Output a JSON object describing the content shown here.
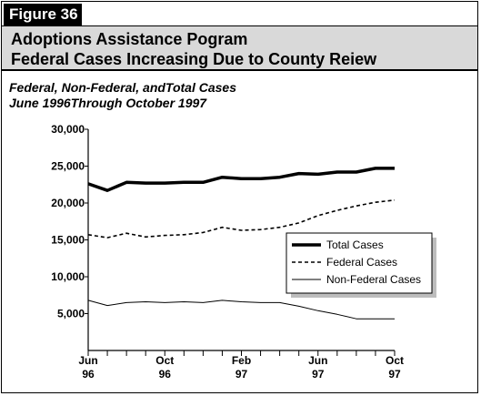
{
  "figure_label": "Figure 36",
  "title_lines": [
    "Adoptions Assistance Pogram",
    "Federal Cases Increasing Due to County Reiew"
  ],
  "subtitle_lines": [
    "Federal, Non-Federal, andTotal Cases",
    "June 1996Through October 1997"
  ],
  "colors": {
    "title_bar": "#d9d9d9",
    "legend_shadow": "#bdbdbd",
    "lines": "#000000"
  },
  "chart_data": {
    "type": "line",
    "x": [
      "Jun 96",
      "Jul 96",
      "Aug 96",
      "Sep 96",
      "Oct 96",
      "Nov 96",
      "Dec 96",
      "Jan 97",
      "Feb 97",
      "Mar 97",
      "Apr 97",
      "May 97",
      "Jun 97",
      "Jul 97",
      "Aug 97",
      "Sep 97",
      "Oct 97"
    ],
    "x_tick_labels": [
      {
        "index": 0,
        "line1": "Jun",
        "line2": "96"
      },
      {
        "index": 4,
        "line1": "Oct",
        "line2": "96"
      },
      {
        "index": 8,
        "line1": "Feb",
        "line2": "97"
      },
      {
        "index": 12,
        "line1": "Jun",
        "line2": "97"
      },
      {
        "index": 16,
        "line1": "Oct",
        "line2": "97"
      }
    ],
    "y_ticks": [
      5000,
      10000,
      15000,
      20000,
      25000,
      30000
    ],
    "y_tick_labels": [
      "5,000",
      "10,000",
      "15,000",
      "20,000",
      "25,000",
      "30,000"
    ],
    "ylim": [
      0,
      30000
    ],
    "legend_position": "right-middle",
    "series": [
      {
        "name": "Total Cases",
        "style": "thick",
        "values": [
          22600,
          21700,
          22800,
          22700,
          22700,
          22800,
          22800,
          23500,
          23300,
          23300,
          23500,
          24000,
          23900,
          24200,
          24200,
          24700,
          24700
        ]
      },
      {
        "name": "Federal Cases",
        "style": "dashed",
        "values": [
          15700,
          15300,
          15900,
          15400,
          15600,
          15700,
          16000,
          16700,
          16300,
          16400,
          16700,
          17300,
          18300,
          19000,
          19600,
          20100,
          20400
        ]
      },
      {
        "name": "Non-Federal Cases",
        "style": "thin",
        "values": [
          6800,
          6100,
          6500,
          6600,
          6500,
          6600,
          6500,
          6800,
          6600,
          6500,
          6500,
          6000,
          5400,
          4900,
          4300,
          4300,
          4300
        ]
      }
    ]
  }
}
